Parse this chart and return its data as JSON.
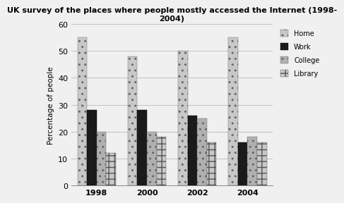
{
  "title": "UK survey of the places where people mostly accessed the Internet (1998-\n2004)",
  "ylabel": "Percentage of people",
  "years": [
    "1998",
    "2000",
    "2002",
    "2004"
  ],
  "categories": [
    "Home",
    "Work",
    "College",
    "Library"
  ],
  "values": {
    "Home": [
      55,
      48,
      50,
      55
    ],
    "Work": [
      28,
      28,
      26,
      16
    ],
    "College": [
      20,
      20,
      25,
      18
    ],
    "Library": [
      12,
      18,
      16,
      16
    ]
  },
  "ylim": [
    0,
    60
  ],
  "yticks": [
    0,
    10,
    20,
    30,
    40,
    50,
    60
  ],
  "bar_width": 0.19,
  "background_color": "#f0f0f0",
  "grid_color": "#cccccc",
  "title_fontsize": 8,
  "label_fontsize": 7.5,
  "tick_fontsize": 8,
  "legend_fontsize": 7
}
